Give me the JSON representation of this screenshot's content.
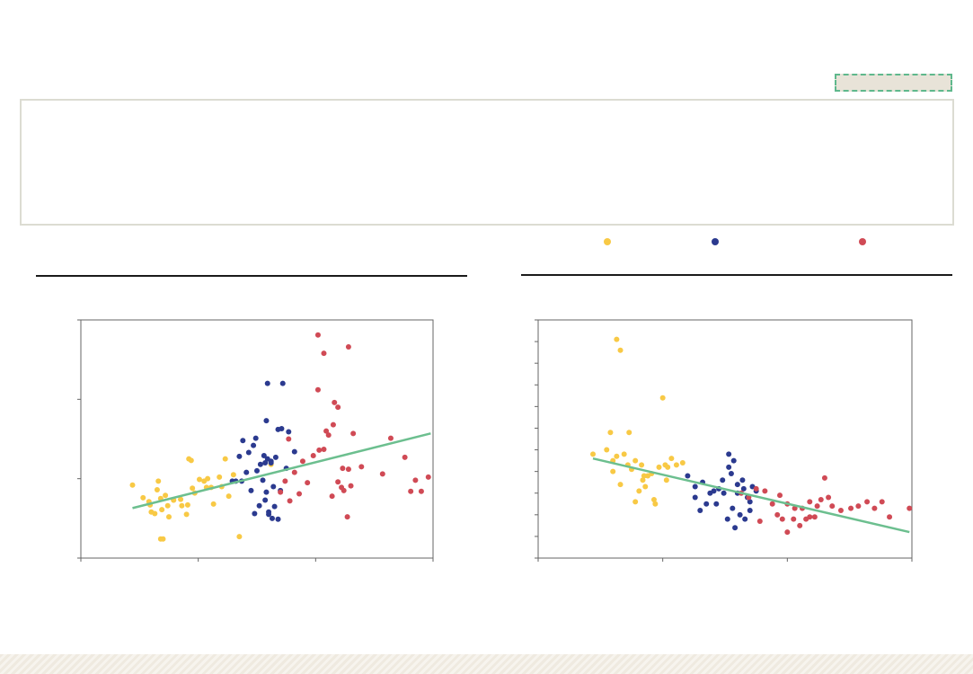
{
  "legend": [
    {
      "label": "",
      "color": "#f8c945"
    },
    {
      "label": "",
      "color": "#2b3a8f"
    },
    {
      "label": "",
      "color": "#d04a55"
    }
  ],
  "charts_meta": [
    {
      "title": ""
    },
    {
      "title": ""
    }
  ],
  "chart_data": [
    {
      "type": "scatter",
      "title": "",
      "xlabel": "",
      "ylabel": "",
      "xlim": [
        0,
        3
      ],
      "ylim": [
        0,
        3
      ],
      "xticks": [
        0,
        1,
        2,
        3
      ],
      "yticks": [
        0,
        1,
        2,
        3
      ],
      "grid": false,
      "series": [
        {
          "color": "#f8c945",
          "points": [
            [
              0.44,
              0.92
            ],
            [
              0.53,
              0.76
            ],
            [
              0.59,
              0.67
            ],
            [
              0.6,
              0.58
            ],
            [
              0.65,
              0.86
            ],
            [
              0.68,
              0.75
            ],
            [
              0.69,
              0.61
            ],
            [
              0.72,
              0.79
            ],
            [
              0.74,
              0.66
            ],
            [
              0.79,
              0.73
            ],
            [
              0.85,
              0.74
            ],
            [
              0.86,
              0.66
            ],
            [
              0.91,
              0.67
            ],
            [
              0.92,
              1.25
            ],
            [
              0.94,
              1.23
            ],
            [
              0.95,
              0.88
            ],
            [
              0.97,
              0.82
            ],
            [
              1.01,
              0.99
            ],
            [
              1.07,
              0.89
            ],
            [
              1.11,
              0.89
            ],
            [
              1.13,
              0.68
            ],
            [
              1.18,
              1.02
            ],
            [
              1.23,
              1.25
            ],
            [
              1.35,
              0.27
            ],
            [
              0.7,
              0.24
            ],
            [
              0.68,
              0.24
            ],
            [
              0.66,
              0.97
            ],
            [
              0.75,
              0.52
            ],
            [
              0.79,
              0.73
            ],
            [
              0.9,
              0.55
            ],
            [
              1.05,
              0.97
            ],
            [
              1.2,
              0.9
            ],
            [
              1.26,
              0.78
            ],
            [
              1.08,
              1.0
            ],
            [
              0.63,
              0.56
            ],
            [
              0.58,
              0.71
            ],
            [
              1.3,
              1.05
            ],
            [
              1.62,
              1.18
            ]
          ]
        },
        {
          "color": "#2b3a8f",
          "points": [
            [
              1.29,
              0.97
            ],
            [
              1.32,
              0.97
            ],
            [
              1.35,
              1.28
            ],
            [
              1.38,
              1.48
            ],
            [
              1.43,
              1.33
            ],
            [
              1.47,
              1.42
            ],
            [
              1.49,
              1.51
            ],
            [
              1.53,
              1.18
            ],
            [
              1.56,
              1.29
            ],
            [
              1.58,
              1.73
            ],
            [
              1.59,
              1.25
            ],
            [
              1.62,
              1.2
            ],
            [
              1.64,
              0.9
            ],
            [
              1.68,
              1.62
            ],
            [
              1.71,
              1.63
            ],
            [
              1.75,
              1.13
            ],
            [
              1.77,
              1.59
            ],
            [
              1.82,
              1.34
            ],
            [
              1.59,
              2.2
            ],
            [
              1.72,
              2.2
            ],
            [
              1.58,
              0.83
            ],
            [
              1.48,
              0.56
            ],
            [
              1.52,
              0.66
            ],
            [
              1.57,
              0.73
            ],
            [
              1.6,
              0.58
            ],
            [
              1.65,
              0.65
            ],
            [
              1.7,
              0.85
            ],
            [
              1.63,
              0.5
            ],
            [
              1.68,
              0.49
            ],
            [
              1.6,
              0.55
            ],
            [
              1.55,
              0.98
            ],
            [
              1.45,
              0.85
            ],
            [
              1.37,
              0.97
            ],
            [
              1.41,
              1.08
            ],
            [
              1.5,
              1.1
            ],
            [
              1.57,
              1.2
            ],
            [
              1.62,
              1.22
            ],
            [
              1.66,
              1.27
            ]
          ]
        },
        {
          "color": "#d04a55",
          "points": [
            [
              1.7,
              0.83
            ],
            [
              1.74,
              0.97
            ],
            [
              1.78,
              0.72
            ],
            [
              1.82,
              1.08
            ],
            [
              1.86,
              0.81
            ],
            [
              1.89,
              1.22
            ],
            [
              1.93,
              0.95
            ],
            [
              1.98,
              1.29
            ],
            [
              2.03,
              1.36
            ],
            [
              2.07,
              1.37
            ],
            [
              2.11,
              1.55
            ],
            [
              2.15,
              1.68
            ],
            [
              2.19,
              1.9
            ],
            [
              2.23,
              1.13
            ],
            [
              2.28,
              1.12
            ],
            [
              2.32,
              1.57
            ],
            [
              2.39,
              1.15
            ],
            [
              2.57,
              1.06
            ],
            [
              2.64,
              1.51
            ],
            [
              2.76,
              1.27
            ],
            [
              2.81,
              0.84
            ],
            [
              2.85,
              0.98
            ],
            [
              2.9,
              0.84
            ],
            [
              2.96,
              1.02
            ],
            [
              2.02,
              2.81
            ],
            [
              2.07,
              2.58
            ],
            [
              2.28,
              2.66
            ],
            [
              2.02,
              2.12
            ],
            [
              2.16,
              1.96
            ],
            [
              1.77,
              1.5
            ],
            [
              2.09,
              1.6
            ],
            [
              2.24,
              0.85
            ],
            [
              2.27,
              0.52
            ],
            [
              2.19,
              0.96
            ],
            [
              2.14,
              0.78
            ],
            [
              2.22,
              0.89
            ],
            [
              2.3,
              0.91
            ]
          ]
        }
      ],
      "trendline": {
        "color": "#6cbf8f",
        "from": [
          0.44,
          0.63
        ],
        "to": [
          2.98,
          1.57
        ]
      }
    },
    {
      "type": "scatter",
      "title": "",
      "xlabel": "",
      "ylabel": "",
      "xlim": [
        0,
        3
      ],
      "ylim": [
        0,
        11
      ],
      "xticks": [
        0,
        1,
        2,
        3
      ],
      "yticks": [
        0,
        1,
        2,
        3,
        4,
        5,
        6,
        7,
        8,
        9,
        10,
        11
      ],
      "grid": false,
      "series": [
        {
          "color": "#f8c945",
          "points": [
            [
              0.44,
              4.8
            ],
            [
              0.58,
              5.8
            ],
            [
              0.6,
              4.0
            ],
            [
              0.63,
              4.7
            ],
            [
              0.66,
              3.4
            ],
            [
              0.69,
              4.8
            ],
            [
              0.73,
              5.8
            ],
            [
              0.75,
              4.1
            ],
            [
              0.78,
              2.6
            ],
            [
              0.83,
              4.3
            ],
            [
              0.85,
              3.8
            ],
            [
              0.88,
              3.8
            ],
            [
              0.93,
              2.7
            ],
            [
              0.97,
              4.2
            ],
            [
              1.02,
              4.3
            ],
            [
              1.04,
              4.2
            ],
            [
              1.07,
              4.6
            ],
            [
              1.11,
              4.3
            ],
            [
              1.16,
              4.4
            ],
            [
              0.63,
              10.1
            ],
            [
              0.66,
              9.6
            ],
            [
              1.0,
              7.4
            ],
            [
              0.55,
              5.0
            ],
            [
              0.6,
              4.5
            ],
            [
              0.72,
              4.3
            ],
            [
              0.81,
              3.1
            ],
            [
              0.84,
              3.6
            ],
            [
              0.91,
              3.9
            ],
            [
              0.94,
              2.5
            ],
            [
              1.03,
              3.6
            ],
            [
              0.78,
              4.5
            ],
            [
              0.86,
              3.3
            ]
          ]
        },
        {
          "color": "#2b3a8f",
          "points": [
            [
              1.2,
              3.8
            ],
            [
              1.26,
              3.3
            ],
            [
              1.32,
              3.5
            ],
            [
              1.35,
              2.5
            ],
            [
              1.41,
              3.1
            ],
            [
              1.45,
              3.2
            ],
            [
              1.49,
              3.0
            ],
            [
              1.53,
              4.2
            ],
            [
              1.57,
              4.5
            ],
            [
              1.6,
              3.4
            ],
            [
              1.64,
              3.6
            ],
            [
              1.68,
              2.8
            ],
            [
              1.72,
              3.3
            ],
            [
              1.26,
              2.8
            ],
            [
              1.3,
              2.2
            ],
            [
              1.38,
              3.0
            ],
            [
              1.43,
              2.5
            ],
            [
              1.52,
              1.8
            ],
            [
              1.56,
              2.3
            ],
            [
              1.58,
              1.4
            ],
            [
              1.62,
              2.0
            ],
            [
              1.66,
              1.8
            ],
            [
              1.7,
              2.2
            ],
            [
              1.48,
              3.6
            ],
            [
              1.55,
              3.9
            ],
            [
              1.6,
              3.0
            ],
            [
              1.65,
              3.2
            ],
            [
              1.7,
              2.6
            ],
            [
              1.53,
              4.8
            ],
            [
              1.75,
              3.1
            ]
          ]
        },
        {
          "color": "#d04a55",
          "points": [
            [
              1.63,
              3.0
            ],
            [
              1.69,
              2.8
            ],
            [
              1.75,
              3.2
            ],
            [
              1.82,
              3.1
            ],
            [
              1.88,
              2.5
            ],
            [
              1.94,
              2.9
            ],
            [
              2.0,
              2.5
            ],
            [
              2.06,
              2.3
            ],
            [
              2.12,
              2.3
            ],
            [
              2.18,
              1.9
            ],
            [
              2.24,
              2.4
            ],
            [
              2.3,
              3.7
            ],
            [
              2.36,
              2.4
            ],
            [
              2.43,
              2.2
            ],
            [
              2.51,
              2.3
            ],
            [
              2.57,
              2.4
            ],
            [
              2.64,
              2.6
            ],
            [
              2.7,
              2.3
            ],
            [
              2.76,
              2.6
            ],
            [
              2.82,
              1.9
            ],
            [
              2.98,
              2.3
            ],
            [
              2.0,
              1.2
            ],
            [
              2.05,
              1.8
            ],
            [
              2.1,
              1.5
            ],
            [
              2.18,
              2.6
            ],
            [
              2.22,
              1.9
            ],
            [
              2.27,
              2.7
            ],
            [
              2.33,
              2.8
            ],
            [
              1.78,
              1.7
            ],
            [
              1.92,
              2.0
            ],
            [
              1.96,
              1.8
            ],
            [
              2.15,
              1.8
            ]
          ]
        }
      ],
      "trendline": {
        "color": "#6cbf8f",
        "from": [
          0.44,
          4.6
        ],
        "to": [
          2.98,
          1.2
        ]
      }
    }
  ]
}
